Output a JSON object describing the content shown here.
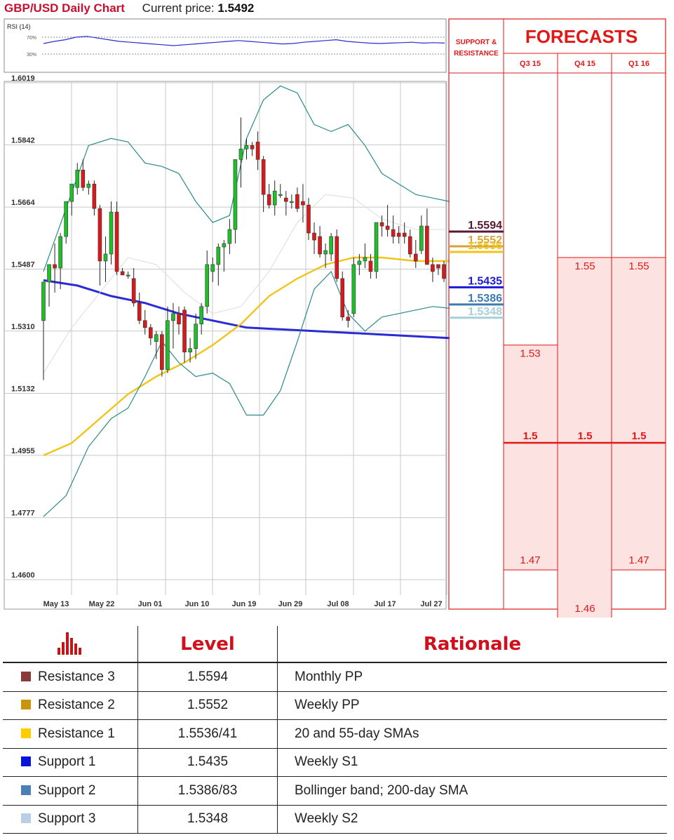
{
  "header": {
    "title": "GBP/USD Daily Chart",
    "price_label": "Current price:",
    "price_value": "1.5492"
  },
  "chart_data": {
    "type": "candlestick",
    "title": "GBP/USD Daily Chart",
    "ylim": [
      1.46,
      1.6019
    ],
    "y_ticks": [
      "1.6019",
      "1.5842",
      "1.5664",
      "1.5487",
      "1.5310",
      "1.5132",
      "1.4955",
      "1.4777",
      "1.4600"
    ],
    "x_ticks": [
      "May 13",
      "May 22",
      "Jun 01",
      "Jun 10",
      "Jun 19",
      "Jun 29",
      "Jul 08",
      "Jul 17",
      "Jul 27"
    ],
    "grid": true,
    "candles": [
      {
        "o": 1.534,
        "h": 1.544,
        "l": 1.517,
        "c": 1.545
      },
      {
        "o": 1.545,
        "h": 1.55,
        "l": 1.538,
        "c": 1.55
      },
      {
        "o": 1.55,
        "h": 1.556,
        "l": 1.542,
        "c": 1.549
      },
      {
        "o": 1.549,
        "h": 1.559,
        "l": 1.543,
        "c": 1.558
      },
      {
        "o": 1.558,
        "h": 1.568,
        "l": 1.556,
        "c": 1.568
      },
      {
        "o": 1.568,
        "h": 1.572,
        "l": 1.564,
        "c": 1.573
      },
      {
        "o": 1.572,
        "h": 1.579,
        "l": 1.57,
        "c": 1.577
      },
      {
        "o": 1.577,
        "h": 1.58,
        "l": 1.571,
        "c": 1.572
      },
      {
        "o": 1.572,
        "h": 1.574,
        "l": 1.57,
        "c": 1.573
      },
      {
        "o": 1.573,
        "h": 1.574,
        "l": 1.564,
        "c": 1.566
      },
      {
        "o": 1.566,
        "h": 1.567,
        "l": 1.544,
        "c": 1.551
      },
      {
        "o": 1.551,
        "h": 1.558,
        "l": 1.545,
        "c": 1.553
      },
      {
        "o": 1.553,
        "h": 1.568,
        "l": 1.55,
        "c": 1.565
      },
      {
        "o": 1.565,
        "h": 1.568,
        "l": 1.547,
        "c": 1.548
      },
      {
        "o": 1.548,
        "h": 1.549,
        "l": 1.547,
        "c": 1.547
      },
      {
        "o": 1.547,
        "h": 1.548,
        "l": 1.546,
        "c": 1.547
      },
      {
        "o": 1.546,
        "h": 1.549,
        "l": 1.538,
        "c": 1.539
      },
      {
        "o": 1.539,
        "h": 1.542,
        "l": 1.533,
        "c": 1.534
      },
      {
        "o": 1.534,
        "h": 1.537,
        "l": 1.53,
        "c": 1.532
      },
      {
        "o": 1.532,
        "h": 1.533,
        "l": 1.527,
        "c": 1.529
      },
      {
        "o": 1.528,
        "h": 1.531,
        "l": 1.523,
        "c": 1.53
      },
      {
        "o": 1.53,
        "h": 1.531,
        "l": 1.518,
        "c": 1.52
      },
      {
        "o": 1.52,
        "h": 1.538,
        "l": 1.519,
        "c": 1.534
      },
      {
        "o": 1.534,
        "h": 1.539,
        "l": 1.526,
        "c": 1.536
      },
      {
        "o": 1.536,
        "h": 1.538,
        "l": 1.53,
        "c": 1.533
      },
      {
        "o": 1.537,
        "h": 1.538,
        "l": 1.522,
        "c": 1.525
      },
      {
        "o": 1.525,
        "h": 1.529,
        "l": 1.522,
        "c": 1.526
      },
      {
        "o": 1.526,
        "h": 1.536,
        "l": 1.523,
        "c": 1.533
      },
      {
        "o": 1.533,
        "h": 1.539,
        "l": 1.53,
        "c": 1.538
      },
      {
        "o": 1.538,
        "h": 1.554,
        "l": 1.536,
        "c": 1.55
      },
      {
        "o": 1.548,
        "h": 1.552,
        "l": 1.545,
        "c": 1.55
      },
      {
        "o": 1.55,
        "h": 1.556,
        "l": 1.544,
        "c": 1.555
      },
      {
        "o": 1.555,
        "h": 1.557,
        "l": 1.548,
        "c": 1.556
      },
      {
        "o": 1.556,
        "h": 1.563,
        "l": 1.553,
        "c": 1.56
      },
      {
        "o": 1.56,
        "h": 1.579,
        "l": 1.556,
        "c": 1.58
      },
      {
        "o": 1.58,
        "h": 1.592,
        "l": 1.572,
        "c": 1.583
      },
      {
        "o": 1.583,
        "h": 1.586,
        "l": 1.58,
        "c": 1.584
      },
      {
        "o": 1.584,
        "h": 1.585,
        "l": 1.581,
        "c": 1.583
      },
      {
        "o": 1.585,
        "h": 1.588,
        "l": 1.577,
        "c": 1.58
      },
      {
        "o": 1.58,
        "h": 1.581,
        "l": 1.565,
        "c": 1.57
      },
      {
        "o": 1.57,
        "h": 1.573,
        "l": 1.566,
        "c": 1.567
      },
      {
        "o": 1.567,
        "h": 1.574,
        "l": 1.564,
        "c": 1.571
      },
      {
        "o": 1.57,
        "h": 1.573,
        "l": 1.569,
        "c": 1.57
      },
      {
        "o": 1.569,
        "h": 1.571,
        "l": 1.564,
        "c": 1.568
      },
      {
        "o": 1.568,
        "h": 1.57,
        "l": 1.566,
        "c": 1.568
      },
      {
        "o": 1.57,
        "h": 1.572,
        "l": 1.565,
        "c": 1.566
      },
      {
        "o": 1.568,
        "h": 1.573,
        "l": 1.562,
        "c": 1.567
      },
      {
        "o": 1.567,
        "h": 1.569,
        "l": 1.557,
        "c": 1.559
      },
      {
        "o": 1.559,
        "h": 1.562,
        "l": 1.553,
        "c": 1.557
      },
      {
        "o": 1.558,
        "h": 1.561,
        "l": 1.552,
        "c": 1.553
      },
      {
        "o": 1.553,
        "h": 1.556,
        "l": 1.549,
        "c": 1.554
      },
      {
        "o": 1.553,
        "h": 1.559,
        "l": 1.551,
        "c": 1.558
      },
      {
        "o": 1.558,
        "h": 1.56,
        "l": 1.545,
        "c": 1.546
      },
      {
        "o": 1.546,
        "h": 1.548,
        "l": 1.534,
        "c": 1.535
      },
      {
        "o": 1.535,
        "h": 1.537,
        "l": 1.532,
        "c": 1.534
      },
      {
        "o": 1.536,
        "h": 1.552,
        "l": 1.535,
        "c": 1.55
      },
      {
        "o": 1.55,
        "h": 1.553,
        "l": 1.547,
        "c": 1.551
      },
      {
        "o": 1.551,
        "h": 1.556,
        "l": 1.549,
        "c": 1.552
      },
      {
        "o": 1.551,
        "h": 1.553,
        "l": 1.546,
        "c": 1.548
      },
      {
        "o": 1.548,
        "h": 1.561,
        "l": 1.546,
        "c": 1.562
      },
      {
        "o": 1.562,
        "h": 1.564,
        "l": 1.558,
        "c": 1.561
      },
      {
        "o": 1.561,
        "h": 1.567,
        "l": 1.558,
        "c": 1.56
      },
      {
        "o": 1.56,
        "h": 1.564,
        "l": 1.556,
        "c": 1.558
      },
      {
        "o": 1.559,
        "h": 1.561,
        "l": 1.556,
        "c": 1.558
      },
      {
        "o": 1.559,
        "h": 1.562,
        "l": 1.556,
        "c": 1.558
      },
      {
        "o": 1.558,
        "h": 1.56,
        "l": 1.552,
        "c": 1.553
      },
      {
        "o": 1.553,
        "h": 1.557,
        "l": 1.549,
        "c": 1.551
      },
      {
        "o": 1.554,
        "h": 1.564,
        "l": 1.553,
        "c": 1.561
      },
      {
        "o": 1.561,
        "h": 1.566,
        "l": 1.55,
        "c": 1.55
      },
      {
        "o": 1.55,
        "h": 1.552,
        "l": 1.545,
        "c": 1.548
      },
      {
        "o": 1.55,
        "h": 1.55,
        "l": 1.547,
        "c": 1.549
      },
      {
        "o": 1.55,
        "h": 1.551,
        "l": 1.545,
        "c": 1.546
      }
    ],
    "overlays": [
      {
        "name": "200-day SMA",
        "color": "#2b2bd4",
        "values": [
          [
            0,
            1.5455
          ],
          [
            6,
            1.544
          ],
          [
            12,
            1.541
          ],
          [
            18,
            1.539
          ],
          [
            24,
            1.536
          ],
          [
            30,
            1.534
          ],
          [
            36,
            1.532
          ],
          [
            42,
            1.5315
          ],
          [
            48,
            1.531
          ],
          [
            54,
            1.5305
          ],
          [
            60,
            1.53
          ],
          [
            66,
            1.5295
          ],
          [
            72,
            1.529
          ]
        ]
      },
      {
        "name": "55-day SMA",
        "color": "#f0c419",
        "values": [
          [
            0,
            1.4955
          ],
          [
            5,
            1.499
          ],
          [
            10,
            1.506
          ],
          [
            15,
            1.513
          ],
          [
            20,
            1.518
          ],
          [
            25,
            1.522
          ],
          [
            30,
            1.527
          ],
          [
            35,
            1.533
          ],
          [
            40,
            1.541
          ],
          [
            45,
            1.546
          ],
          [
            50,
            1.55
          ],
          [
            55,
            1.552
          ],
          [
            60,
            1.552
          ],
          [
            66,
            1.551
          ],
          [
            72,
            1.551
          ]
        ]
      },
      {
        "name": "Bollinger upper",
        "color": "#2a8a8a",
        "values": [
          [
            0,
            1.548
          ],
          [
            4,
            1.566
          ],
          [
            8,
            1.584
          ],
          [
            12,
            1.586
          ],
          [
            15,
            1.585
          ],
          [
            18,
            1.579
          ],
          [
            21,
            1.578
          ],
          [
            24,
            1.576
          ],
          [
            27,
            1.568
          ],
          [
            30,
            1.562
          ],
          [
            33,
            1.564
          ],
          [
            36,
            1.586
          ],
          [
            39,
            1.597
          ],
          [
            42,
            1.601
          ],
          [
            45,
            1.599
          ],
          [
            48,
            1.59
          ],
          [
            51,
            1.588
          ],
          [
            54,
            1.59
          ],
          [
            57,
            1.584
          ],
          [
            60,
            1.576
          ],
          [
            63,
            1.573
          ],
          [
            66,
            1.57
          ],
          [
            69,
            1.569
          ],
          [
            72,
            1.568
          ]
        ]
      },
      {
        "name": "Bollinger lower",
        "color": "#2a8a8a",
        "values": [
          [
            0,
            1.478
          ],
          [
            4,
            1.484
          ],
          [
            8,
            1.498
          ],
          [
            12,
            1.506
          ],
          [
            15,
            1.509
          ],
          [
            18,
            1.518
          ],
          [
            21,
            1.528
          ],
          [
            24,
            1.522
          ],
          [
            27,
            1.518
          ],
          [
            30,
            1.519
          ],
          [
            33,
            1.516
          ],
          [
            36,
            1.507
          ],
          [
            39,
            1.507
          ],
          [
            42,
            1.514
          ],
          [
            45,
            1.528
          ],
          [
            48,
            1.543
          ],
          [
            51,
            1.548
          ],
          [
            54,
            1.536
          ],
          [
            57,
            1.531
          ],
          [
            60,
            1.535
          ],
          [
            63,
            1.536
          ],
          [
            66,
            1.537
          ],
          [
            69,
            1.538
          ],
          [
            72,
            1.5375
          ]
        ]
      },
      {
        "name": "20-day SMA",
        "color": "#dcdcdc",
        "values": [
          [
            0,
            1.519
          ],
          [
            5,
            1.532
          ],
          [
            10,
            1.542
          ],
          [
            15,
            1.552
          ],
          [
            20,
            1.55
          ],
          [
            25,
            1.542
          ],
          [
            30,
            1.536
          ],
          [
            35,
            1.538
          ],
          [
            40,
            1.548
          ],
          [
            45,
            1.562
          ],
          [
            50,
            1.57
          ],
          [
            55,
            1.569
          ],
          [
            60,
            1.563
          ],
          [
            66,
            1.56
          ],
          [
            72,
            1.56
          ]
        ]
      }
    ],
    "rsi": {
      "label": "RSI (14)",
      "levels": [
        "70%",
        "30%"
      ],
      "values": [
        55,
        60,
        64,
        70,
        72,
        68,
        64,
        60,
        58,
        56,
        54,
        52,
        50,
        52,
        54,
        56,
        58,
        60,
        62,
        60,
        58,
        56,
        54,
        55,
        58,
        60,
        62,
        64,
        60,
        58,
        56,
        55,
        56,
        57,
        58,
        56,
        57,
        56
      ]
    },
    "sr_levels": [
      {
        "label": "1.5594",
        "value": 1.5594,
        "color": "#5a1733"
      },
      {
        "label": "1.5552",
        "value": 1.5552,
        "color": "#d4a33a"
      },
      {
        "label": "1.5536",
        "value": 1.5536,
        "color": "#f0c419"
      },
      {
        "label": "1.5435",
        "value": 1.5435,
        "color": "#1b1bd6"
      },
      {
        "label": "1.5386",
        "value": 1.5386,
        "color": "#3d7bb0"
      },
      {
        "label": "1.5348",
        "value": 1.5348,
        "color": "#a7cfd6"
      }
    ]
  },
  "forecast_panel": {
    "sr_header": "SUPPORT & RESISTANCE",
    "forecasts_header": "FORECASTS",
    "quarters": [
      {
        "label": "Q3 15",
        "high": "1.53",
        "mid": "1.5",
        "low": "1.47"
      },
      {
        "label": "Q4 15",
        "high": "1.55",
        "mid": "1.5",
        "low": "1.46"
      },
      {
        "label": "Q1 16",
        "high": "1.55",
        "mid": "1.5",
        "low": "1.47"
      }
    ]
  },
  "levels_table": {
    "col_level": "Level",
    "col_rationale": "Rationale",
    "rows": [
      {
        "name": "Resistance 3",
        "level": "1.5594",
        "rationale": "Monthly PP",
        "color": "#8b3a3a"
      },
      {
        "name": "Resistance 2",
        "level": "1.5552",
        "rationale": "Weekly PP",
        "color": "#c7960c"
      },
      {
        "name": "Resistance 1",
        "level": "1.5536/41",
        "rationale": "20 and 55-day SMAs",
        "color": "#ffcc00"
      },
      {
        "name": "Support 1",
        "level": "1.5435",
        "rationale": "Weekly S1",
        "color": "#0a14d8"
      },
      {
        "name": "Support 2",
        "level": "1.5386/83",
        "rationale": "Bollinger band; 200-day SMA",
        "color": "#4a7fb8"
      },
      {
        "name": "Support 3",
        "level": "1.5348",
        "rationale": "Weekly S2",
        "color": "#b9cfe6"
      }
    ]
  }
}
